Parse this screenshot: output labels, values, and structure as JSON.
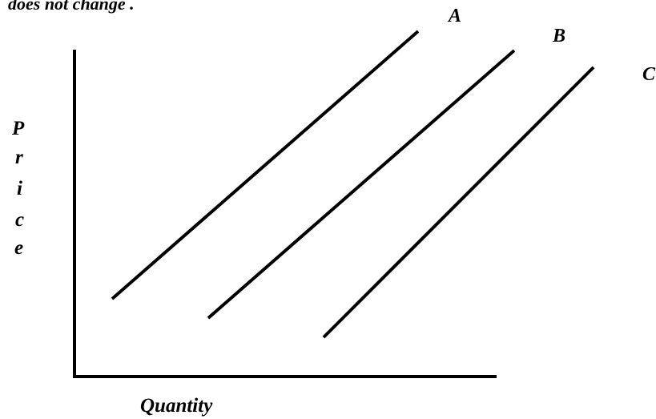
{
  "header_fragment": "does not change .",
  "curves": [
    {
      "label": "A"
    },
    {
      "label": "B"
    },
    {
      "label": "C"
    }
  ],
  "y_axis_label": [
    "P",
    "r",
    "i",
    "c",
    "e"
  ],
  "x_axis_label": "Quantity",
  "colors": {
    "ink": "#000000",
    "background": "#ffffff"
  }
}
